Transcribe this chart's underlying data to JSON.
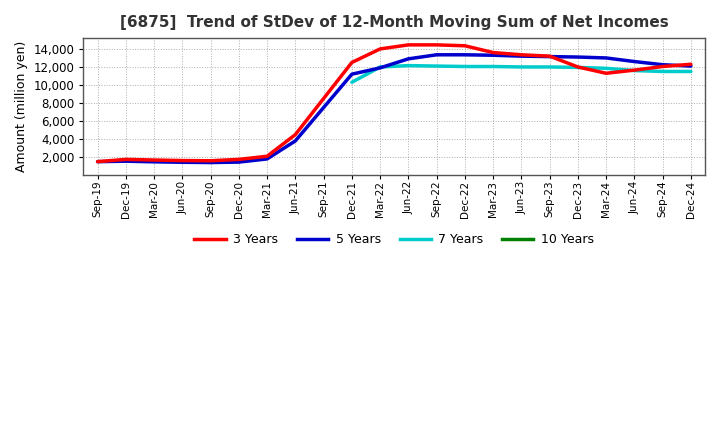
{
  "title": "[6875]  Trend of StDev of 12-Month Moving Sum of Net Incomes",
  "ylabel": "Amount (million yen)",
  "background_color": "#ffffff",
  "plot_bg_color": "#ffffff",
  "grid_color": "#999999",
  "x_labels": [
    "Sep-19",
    "Dec-19",
    "Mar-20",
    "Jun-20",
    "Sep-20",
    "Dec-20",
    "Mar-21",
    "Jun-21",
    "Sep-21",
    "Dec-21",
    "Mar-22",
    "Jun-22",
    "Sep-22",
    "Dec-22",
    "Mar-23",
    "Jun-23",
    "Sep-23",
    "Dec-23",
    "Mar-24",
    "Jun-24",
    "Sep-24",
    "Dec-24"
  ],
  "ylim": [
    0,
    15200
  ],
  "yticks": [
    2000,
    4000,
    6000,
    8000,
    10000,
    12000,
    14000
  ],
  "series": {
    "3yr": {
      "color": "#ff0000",
      "label": "3 Years",
      "x": [
        0,
        1,
        2,
        3,
        4,
        5,
        6,
        7,
        8,
        9,
        10,
        11,
        12,
        13,
        14,
        15,
        16,
        17,
        18,
        19,
        20,
        21
      ],
      "y": [
        1500,
        1750,
        1680,
        1620,
        1600,
        1750,
        2100,
        4500,
        8500,
        12500,
        14000,
        14450,
        14450,
        14350,
        13600,
        13350,
        13200,
        12000,
        11300,
        11650,
        12050,
        12300
      ]
    },
    "5yr": {
      "color": "#0000cc",
      "label": "5 Years",
      "x": [
        0,
        1,
        2,
        3,
        4,
        5,
        6,
        7,
        8,
        9,
        10,
        11,
        12,
        13,
        14,
        15,
        16,
        17,
        18,
        19,
        20,
        21
      ],
      "y": [
        1500,
        1550,
        1480,
        1430,
        1400,
        1450,
        1800,
        3800,
        7500,
        11200,
        11900,
        12900,
        13350,
        13350,
        13300,
        13200,
        13150,
        13100,
        13000,
        12600,
        12250,
        12100
      ]
    },
    "7yr": {
      "color": "#00cccc",
      "label": "7 Years",
      "x": [
        9,
        10,
        11,
        12,
        13,
        14,
        15,
        16,
        17,
        18,
        19,
        20,
        21
      ],
      "y": [
        10300,
        12000,
        12150,
        12100,
        12050,
        12050,
        12000,
        12000,
        11950,
        11850,
        11600,
        11500,
        11500
      ]
    },
    "10yr": {
      "color": "#008000",
      "label": "10 Years",
      "x": [
        21
      ],
      "y": [
        12050
      ]
    }
  }
}
